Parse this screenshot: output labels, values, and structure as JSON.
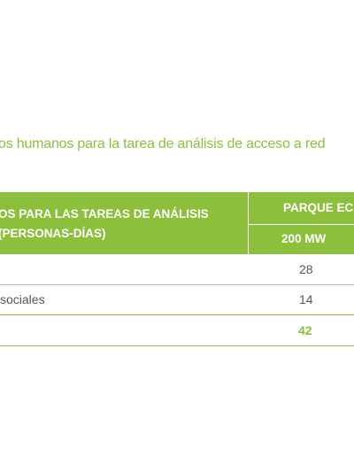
{
  "title": "os humanos para la tarea de análisis de acceso a red",
  "table": {
    "header": {
      "left": [
        "OS PARA LAS TAREAS DE ANÁLISIS",
        "(PERSONAS-DÍAS)"
      ],
      "group": "PARQUE EC",
      "column": "200 MW"
    },
    "rows": [
      [
        "",
        28
      ],
      [
        "sociales",
        14
      ],
      [
        "",
        42
      ]
    ]
  }
}
